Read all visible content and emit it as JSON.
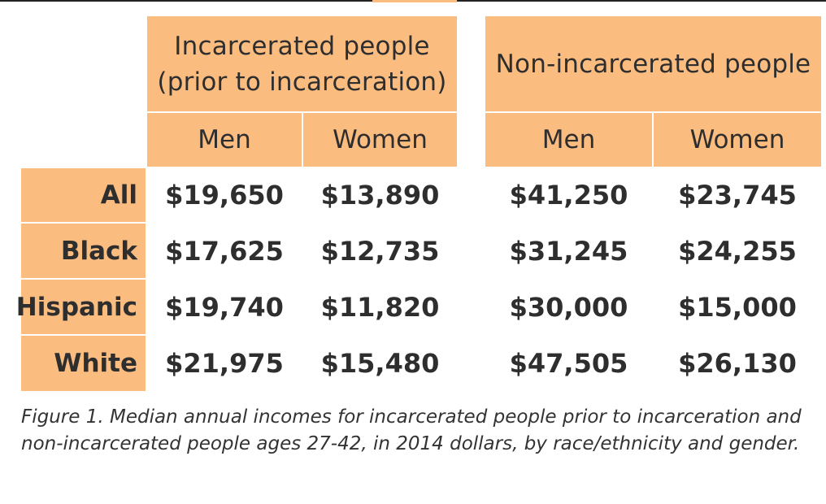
{
  "colors": {
    "accent": "#fbbc80",
    "gutter": "#ffffff",
    "text": "#2e2e2e"
  },
  "chart_data": {
    "type": "table",
    "groups": [
      {
        "label_line1": "Incarcerated people",
        "label_line2": "(prior to incarceration)"
      },
      {
        "label_line1": "Non-incarcerated people"
      }
    ],
    "columns": [
      "Men",
      "Women",
      "Men",
      "Women"
    ],
    "rows": [
      {
        "label": "All",
        "values": [
          "$19,650",
          "$13,890",
          "$41,250",
          "$23,745"
        ]
      },
      {
        "label": "Black",
        "values": [
          "$17,625",
          "$12,735",
          "$31,245",
          "$24,255"
        ]
      },
      {
        "label": "Hispanic",
        "values": [
          "$19,740",
          "$11,820",
          "$30,000",
          "$15,000"
        ]
      },
      {
        "label": "White",
        "values": [
          "$21,975",
          "$15,480",
          "$47,505",
          "$26,130"
        ]
      }
    ],
    "caption": "Figure 1. Median annual incomes for incarcerated people prior to incarceration and non-incarcerated people ages 27-42, in 2014 dollars, by race/ethnicity and gender."
  }
}
